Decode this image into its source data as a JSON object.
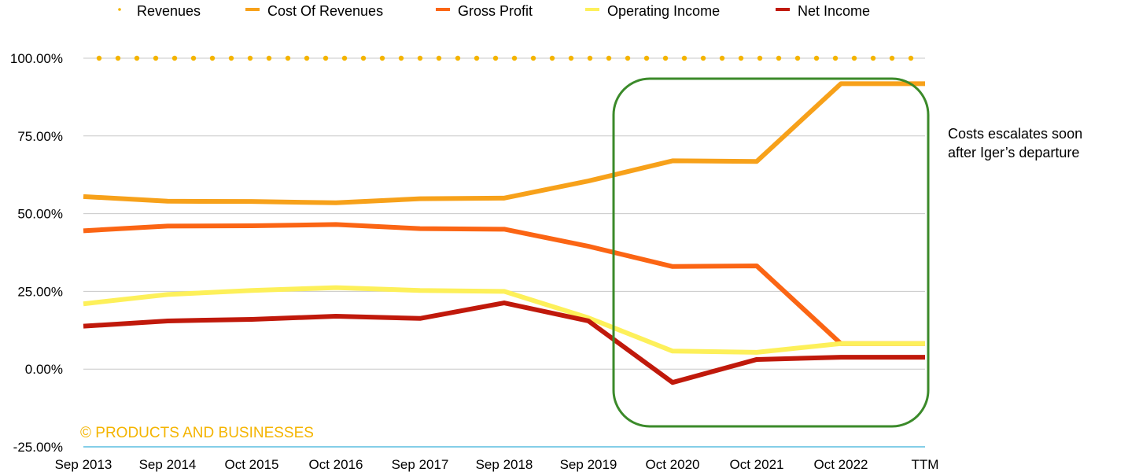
{
  "chart_data": {
    "type": "line",
    "categories": [
      "Sep 2013",
      "Sep 2014",
      "Oct 2015",
      "Oct 2016",
      "Sep 2017",
      "Sep 2018",
      "Sep 2019",
      "Oct 2020",
      "Oct 2021",
      "Oct 2022",
      "TTM"
    ],
    "y_tick_labels": [
      "100.00%",
      "75.00%",
      "50.00%",
      "25.00%",
      "0.00%",
      "-25.00%"
    ],
    "y_ticks": [
      100,
      75,
      50,
      25,
      0,
      -25
    ],
    "ylim": [
      -25,
      100
    ],
    "grid": true,
    "legend_position": "top",
    "series": [
      {
        "name": "Revenues",
        "color": "#f4b400",
        "style": "dotted",
        "values": [
          100,
          100,
          100,
          100,
          100,
          100,
          100,
          100,
          100,
          100,
          100
        ]
      },
      {
        "name": "Cost Of Revenues",
        "color": "#f7a11a",
        "style": "solid",
        "values": [
          55.5,
          54.0,
          53.9,
          53.5,
          54.8,
          55.0,
          60.5,
          67.0,
          66.8,
          91.8,
          91.8
        ]
      },
      {
        "name": "Gross Profit",
        "color": "#fb6514",
        "style": "solid",
        "values": [
          44.5,
          46.0,
          46.1,
          46.5,
          45.2,
          45.0,
          39.5,
          33.0,
          33.2,
          8.2,
          8.2
        ]
      },
      {
        "name": "Operating Income",
        "color": "#fdf05a",
        "style": "solid",
        "values": [
          21.0,
          24.0,
          25.3,
          26.2,
          25.3,
          25.0,
          16.5,
          5.8,
          5.4,
          8.2,
          8.2
        ]
      },
      {
        "name": "Net Income",
        "color": "#c0190b",
        "style": "solid",
        "values": [
          13.8,
          15.5,
          16.0,
          17.0,
          16.3,
          21.3,
          15.5,
          -4.3,
          3.1,
          3.8,
          3.8
        ]
      }
    ],
    "annotation": "Costs escalates soon after Iger’s departure",
    "annotation_lines": [
      "Costs escalates soon",
      "after Iger’s departure"
    ],
    "highlight_box_color": "#3b8a2a",
    "highlight_range": [
      "Sep 2019",
      "TTM"
    ],
    "watermark": "© PRODUCTS AND BUSINESSES"
  }
}
